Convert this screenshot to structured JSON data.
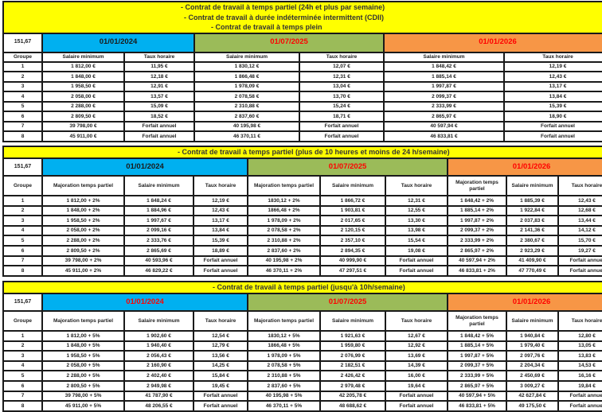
{
  "tables": [
    {
      "title_lines": [
        "- Contrat de travail à temps partiel (24h et plus par semaine)",
        "- Contrat de travail à durée indéterminée intermittent (CDII)",
        "- Contrat de travail à temps plein"
      ],
      "base": "151,67",
      "group_label": "Groupe",
      "periods": [
        {
          "date": "01/01/2024",
          "color": "#00B0F0",
          "date_color": "#1a1a1a",
          "columns": [
            "Salaire minimum",
            "Taux horaire"
          ]
        },
        {
          "date": "01/07/2025",
          "color": "#9BBB59",
          "date_color": "#FF0000",
          "columns": [
            "Salaire minimum",
            "Taux horaire"
          ]
        },
        {
          "date": "01/01/2026",
          "color": "#F79646",
          "date_color": "#FF0000",
          "columns": [
            "Salaire minimum",
            "Taux horaire"
          ]
        }
      ],
      "rows": [
        {
          "group": "1",
          "cells": [
            "1 812,00 €",
            "11,95 €",
            "1 830,12 €",
            "12,07 €",
            "1 848,42 €",
            "12,19 €"
          ]
        },
        {
          "group": "2",
          "cells": [
            "1 848,00 €",
            "12,18 €",
            "1 866,48 €",
            "12,31 €",
            "1 885,14 €",
            "12,43 €"
          ]
        },
        {
          "group": "3",
          "cells": [
            "1 958,50 €",
            "12,91 €",
            "1 978,09 €",
            "13,04 €",
            "1 997,87 €",
            "13,17 €"
          ]
        },
        {
          "group": "4",
          "cells": [
            "2 058,00 €",
            "13,57 €",
            "2 078,58 €",
            "13,70 €",
            "2 099,37 €",
            "13,84 €"
          ]
        },
        {
          "group": "5",
          "cells": [
            "2 288,00 €",
            "15,09 €",
            "2 310,88 €",
            "15,24 €",
            "2 333,99 €",
            "15,39 €"
          ]
        },
        {
          "group": "6",
          "cells": [
            "2 809,50 €",
            "18,52 €",
            "2 837,60 €",
            "18,71 €",
            "2 865,97 €",
            "18,90 €"
          ]
        },
        {
          "group": "7",
          "cells": [
            "39 798,00 €",
            "Forfait annuel",
            "40 195,98 €",
            "Forfait annuel",
            "40 597,94 €",
            "Forfait annuel"
          ]
        },
        {
          "group": "8",
          "cells": [
            "45 911,00 €",
            "Forfait annuel",
            "46 370,11 €",
            "Forfait annuel",
            "46 833,81 €",
            "Forfait annuel"
          ]
        }
      ]
    },
    {
      "title_lines": [
        "- Contrat de travail à temps partiel (plus de 10 heures et moins de 24 h/semaine)"
      ],
      "base": "151,67",
      "group_label": "Groupe",
      "periods": [
        {
          "date": "01/01/2024",
          "color": "#00B0F0",
          "date_color": "#1a1a1a",
          "columns": [
            "Majoration temps partiel",
            "Salaire minimum",
            "Taux horaire"
          ]
        },
        {
          "date": "01/07/2025",
          "color": "#9BBB59",
          "date_color": "#FF0000",
          "columns": [
            "Majoration temps partiel",
            "Salaire minimum",
            "Taux horaire"
          ]
        },
        {
          "date": "01/01/2026",
          "color": "#F79646",
          "date_color": "#FF0000",
          "columns": [
            "Majoration temps partiel",
            "Salaire minimum",
            "Taux horaire"
          ]
        }
      ],
      "rows": [
        {
          "group": "1",
          "cells": [
            "1 812,00 + 2%",
            "1 848,24 €",
            "12,19 €",
            "1830,12 + 2%",
            "1 866,72 €",
            "12,31 €",
            "1 848,42 + 2%",
            "1 885,39 €",
            "12,43 €"
          ]
        },
        {
          "group": "2",
          "cells": [
            "1 848,00 + 2%",
            "1 884,96 €",
            "12,43 €",
            "1866,48 + 2%",
            "1 903,81 €",
            "12,55 €",
            "1 885,14 + 2%",
            "1 922,84 €",
            "12,68 €"
          ]
        },
        {
          "group": "3",
          "cells": [
            "1 958,50 + 2%",
            "1 997,67 €",
            "13,17 €",
            "1 978,09 + 2%",
            "2 017,65 €",
            "13,30 €",
            "1 997,87 + 2%",
            "2 037,83 €",
            "13,44 €"
          ]
        },
        {
          "group": "4",
          "cells": [
            "2 058,00 + 2%",
            "2 099,16 €",
            "13,84 €",
            "2 078,58 + 2%",
            "2 120,15 €",
            "13,98 €",
            "2 099,37 + 2%",
            "2 141,36 €",
            "14,12 €"
          ]
        },
        {
          "group": "5",
          "cells": [
            "2 288,00 + 2%",
            "2 333,76 €",
            "15,39 €",
            "2 310,88 + 2%",
            "2 357,10 €",
            "15,54 €",
            "2 333,99 + 2%",
            "2 380,67 €",
            "15,70 €"
          ]
        },
        {
          "group": "6",
          "cells": [
            "2 809,50 + 2%",
            "2 865,69 €",
            "18,89 €",
            "2 837,60 + 2%",
            "2 894,35 €",
            "19,08 €",
            "2 865,97 + 2%",
            "2 923,29 €",
            "19,27 €"
          ]
        },
        {
          "group": "7",
          "cells": [
            "39 798,00 + 2%",
            "40 593,96 €",
            "Forfait annuel",
            "40 195,98 + 2%",
            "40 999,90 €",
            "Forfait annuel",
            "40 597,94 + 2%",
            "41 409,90 €",
            "Forfait annuel"
          ]
        },
        {
          "group": "8",
          "cells": [
            "45 911,00 + 2%",
            "46 829,22 €",
            "Forfait annuel",
            "46 370,11 + 2%",
            "47 297,51 €",
            "Forfait annuel",
            "46 833,81 + 2%",
            "47 770,49 €",
            "Forfait annuel"
          ]
        }
      ]
    },
    {
      "title_lines": [
        "- Contrat de travail à temps partiel (jusqu'à 10h/semaine)"
      ],
      "base": "151,67",
      "group_label": "Groupe",
      "periods": [
        {
          "date": "01/01/2024",
          "color": "#00B0F0",
          "date_color": "#FF0000",
          "columns": [
            "Majoration temps partiel",
            "Salaire minimum",
            "Taux horaire"
          ]
        },
        {
          "date": "01/07/2025",
          "color": "#9BBB59",
          "date_color": "#FF0000",
          "columns": [
            "Majoration temps partiel",
            "Salaire minimum",
            "Taux horaire"
          ]
        },
        {
          "date": "01/01/2026",
          "color": "#F79646",
          "date_color": "#FF0000",
          "columns": [
            "Majoration temps partiel",
            "Salaire minimum",
            "Taux horaire"
          ]
        }
      ],
      "rows": [
        {
          "group": "1",
          "cells": [
            "1 812,00 + 5%",
            "1 902,60 €",
            "12,54 €",
            "1830,12 + 5%",
            "1 921,63 €",
            "12,67 €",
            "1 848,42 + 5%",
            "1 940,84 €",
            "12,80 €"
          ]
        },
        {
          "group": "2",
          "cells": [
            "1 848,00 + 5%",
            "1 940,40 €",
            "12,79 €",
            "1866,48 + 5%",
            "1 959,80 €",
            "12,92 €",
            "1 885,14 + 5%",
            "1 979,40 €",
            "13,05 €"
          ]
        },
        {
          "group": "3",
          "cells": [
            "1 958,50 + 5%",
            "2 056,43 €",
            "13,56 €",
            "1 978,09 + 5%",
            "2 076,99 €",
            "13,69 €",
            "1 997,87 + 5%",
            "2 097,76 €",
            "13,83 €"
          ]
        },
        {
          "group": "4",
          "cells": [
            "2 058,00 + 5%",
            "2 160,90 €",
            "14,25 €",
            "2 078,58 + 5%",
            "2 182,51 €",
            "14,39 €",
            "2 099,37 + 5%",
            "2 204,34 €",
            "14,53 €"
          ]
        },
        {
          "group": "5",
          "cells": [
            "2 288,00 + 5%",
            "2 402,40 €",
            "15,84 €",
            "2 310,88 + 5%",
            "2 426,42 €",
            "16,00 €",
            "2 333,99 + 5%",
            "2 450,69 €",
            "16,16 €"
          ]
        },
        {
          "group": "6",
          "cells": [
            "2 809,50 + 5%",
            "2 949,98 €",
            "19,45 €",
            "2 837,60 + 5%",
            "2 979,48 €",
            "19,64 €",
            "2 865,97 + 5%",
            "3 009,27 €",
            "19,84 €"
          ]
        },
        {
          "group": "7",
          "cells": [
            "39 798,00 + 5%",
            "41 787,90 €",
            "Forfait annuel",
            "40 195,98 + 5%",
            "42 205,78 €",
            "Forfait annuel",
            "40 597,94 + 5%",
            "42 627,84 €",
            "Forfait annuel"
          ]
        },
        {
          "group": "8",
          "cells": [
            "45 911,00 + 5%",
            "48 206,55 €",
            "Forfait annuel",
            "46 370,11 + 5%",
            "48 688,62 €",
            "Forfait annuel",
            "46 833,81 + 5%",
            "49 175,50 €",
            "Forfait annuel"
          ]
        }
      ]
    }
  ]
}
